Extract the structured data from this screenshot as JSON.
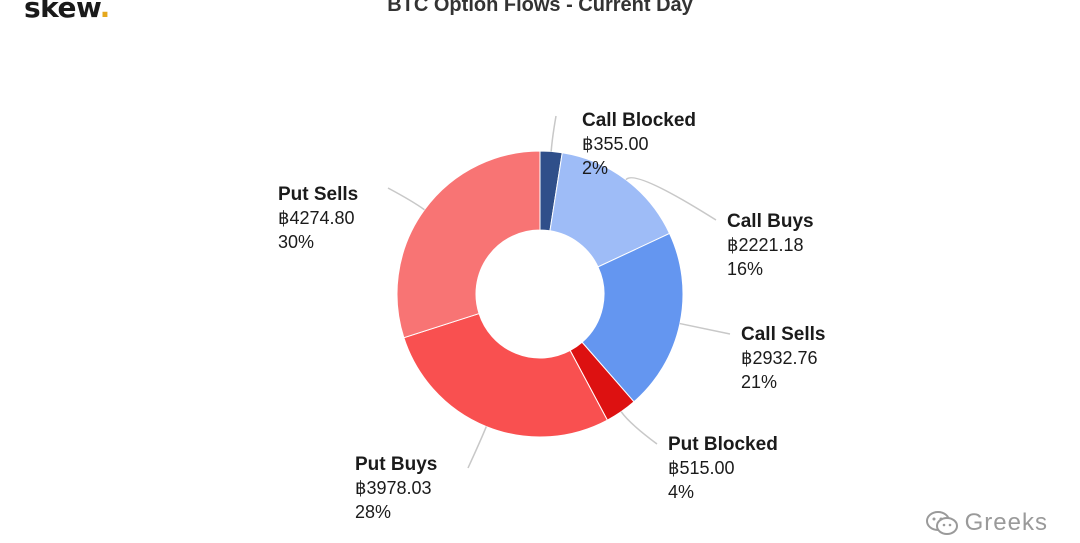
{
  "header": {
    "logo_text": "skew",
    "logo_dot": ".",
    "title": "BTC Option Flows - Current Day"
  },
  "watermark": {
    "text": "Greeks",
    "icon": "wechat-icon"
  },
  "colors": {
    "call_blocked": "#2f4f8a",
    "call_buys": "#9ebcf7",
    "call_sells": "#6496f0",
    "put_blocked": "#dd1111",
    "put_buys": "#f95050",
    "put_sells": "#f87474",
    "leader": "#c8c8c8"
  },
  "chart_data": {
    "type": "pie",
    "donut": true,
    "title": "BTC Option Flows - Current Day",
    "currency_symbol": "฿",
    "slices": [
      {
        "label": "Call Blocked",
        "value": 355.0,
        "value_text": "฿355.00",
        "percent_text": "2%",
        "color": "#2f4f8a"
      },
      {
        "label": "Call Buys",
        "value": 2221.18,
        "value_text": "฿2221.18",
        "percent_text": "16%",
        "color": "#9ebcf7"
      },
      {
        "label": "Call Sells",
        "value": 2932.76,
        "value_text": "฿2932.76",
        "percent_text": "21%",
        "color": "#6496f0"
      },
      {
        "label": "Put Blocked",
        "value": 515.0,
        "value_text": "฿515.00",
        "percent_text": "4%",
        "color": "#dd1111"
      },
      {
        "label": "Put Buys",
        "value": 3978.03,
        "value_text": "฿3978.03",
        "percent_text": "28%",
        "color": "#f95050"
      },
      {
        "label": "Put Sells",
        "value": 4274.8,
        "value_text": "฿4274.80",
        "percent_text": "30%",
        "color": "#f87474"
      }
    ]
  }
}
